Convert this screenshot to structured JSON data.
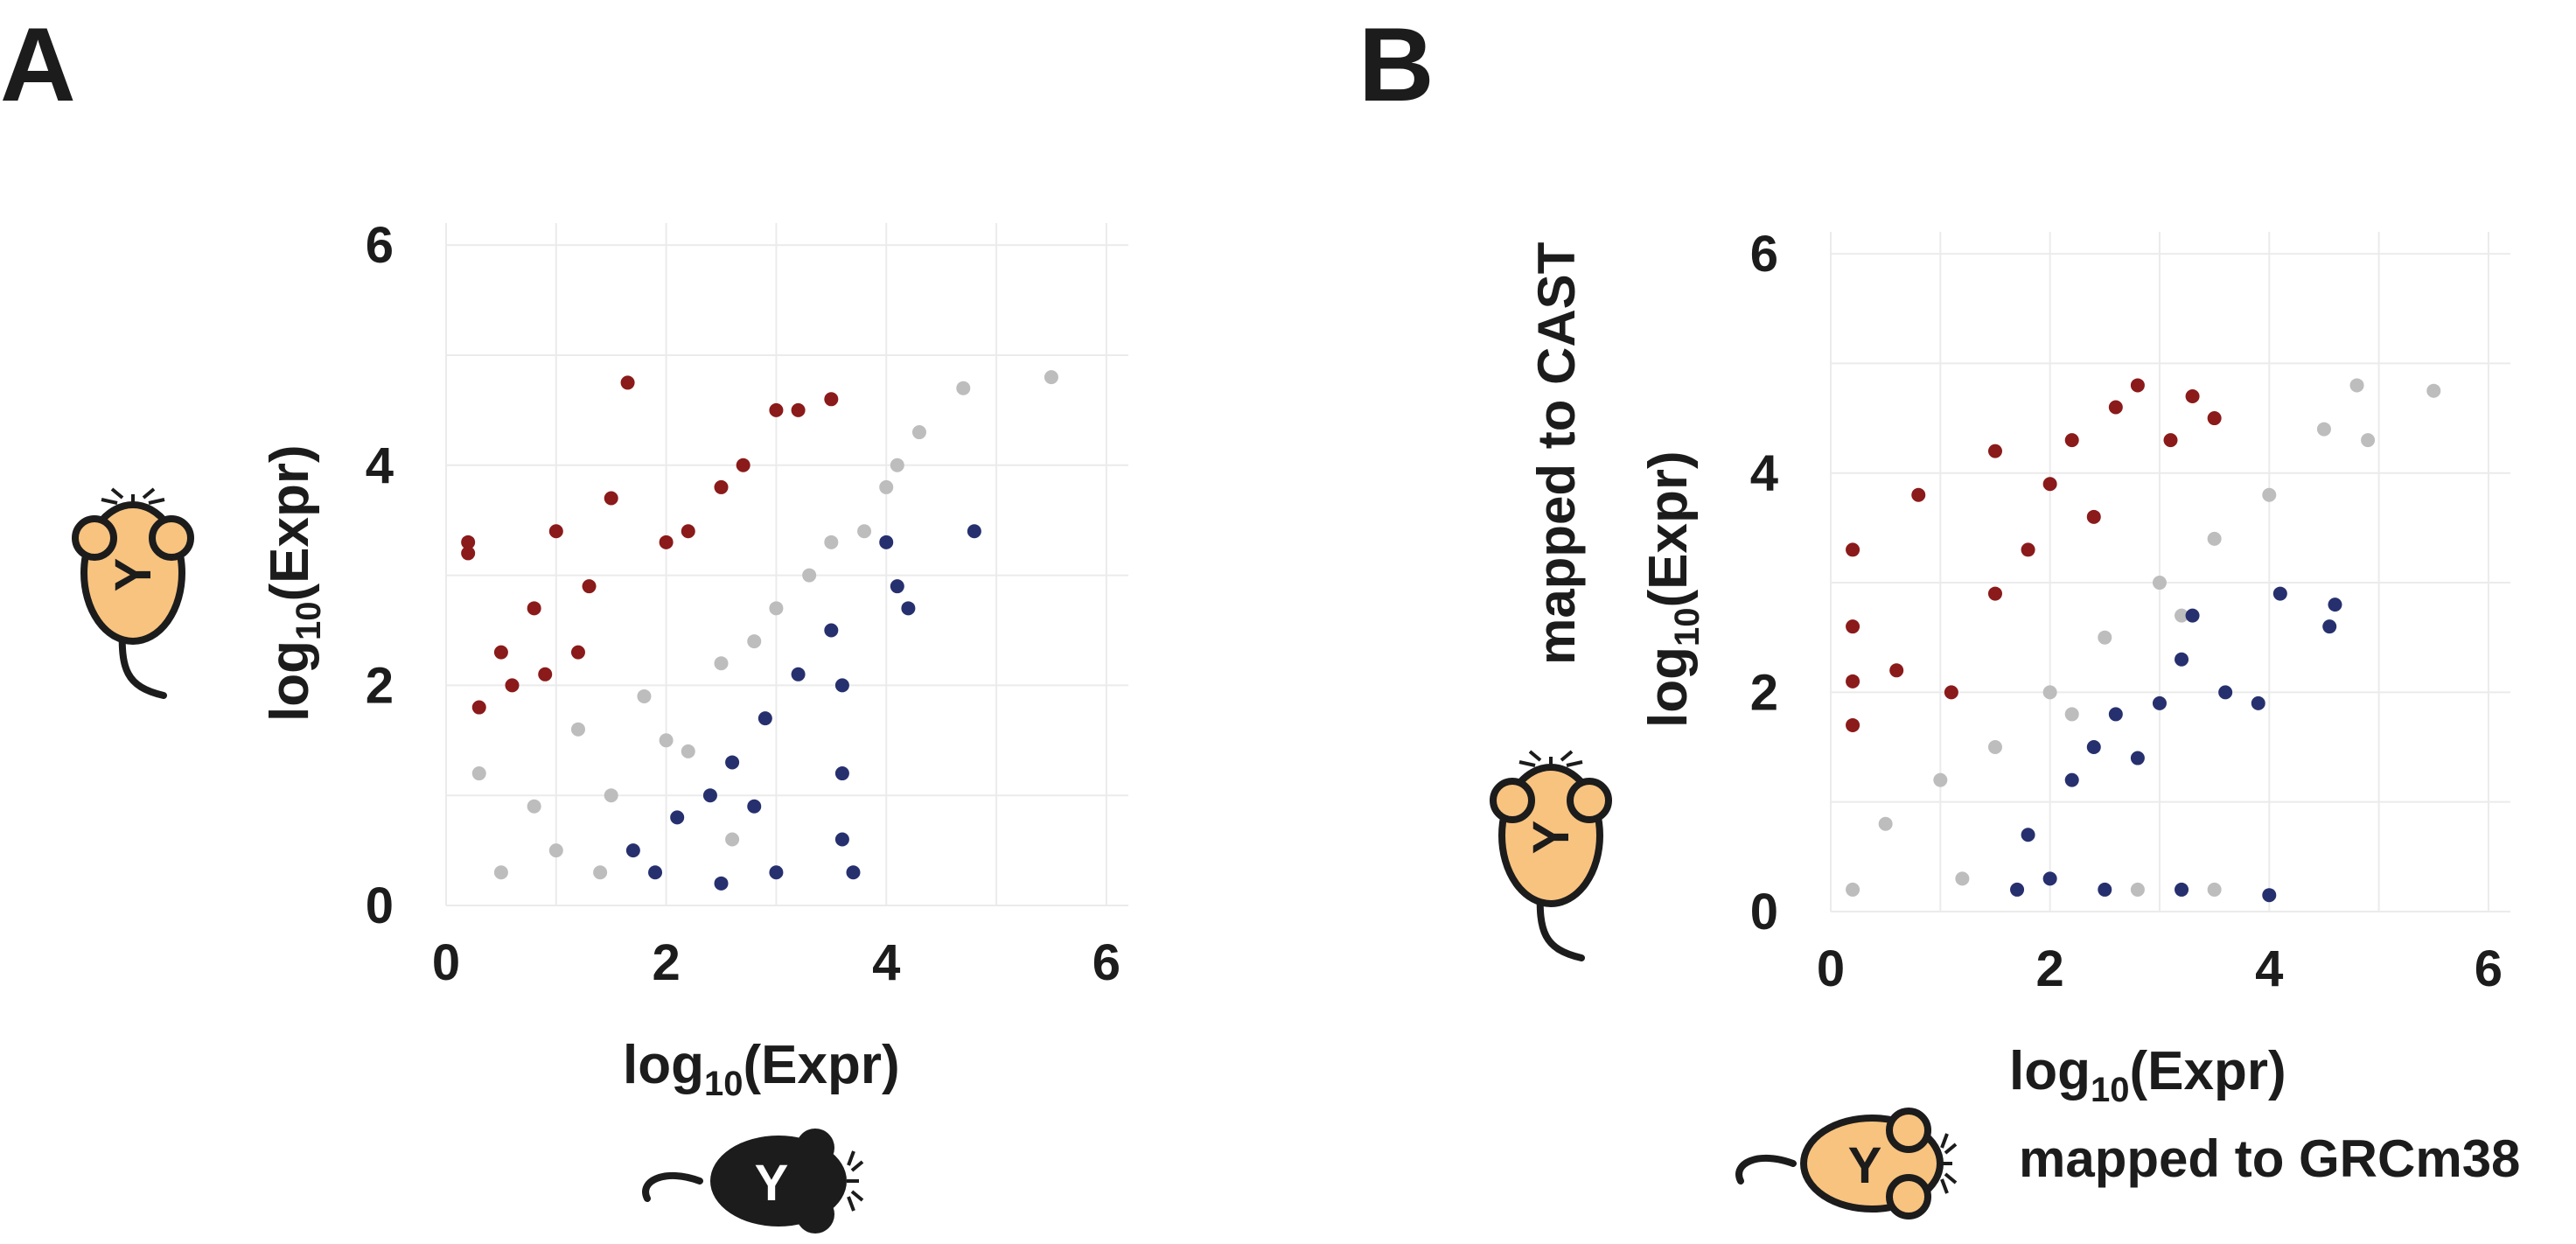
{
  "colors": {
    "non_significant": "#bdbdbd",
    "up": "#8b1a1a",
    "down": "#27306e",
    "mouse_fill": "#f8c37f",
    "mouse_outline": "#1c1c1c",
    "grid": "#ebebeb"
  },
  "panel_letters": [
    "A",
    "B"
  ],
  "axis_title_main": "log",
  "axis_title_sub": "10",
  "axis_title_rest": "(Expr)",
  "panel_b": {
    "y_mapping_label": "mapped to CAST",
    "x_mapping_label": "mapped to GRCm38"
  },
  "icons": [
    "mouse-y-orange-icon",
    "mouse-y-black-icon"
  ],
  "chart_data": [
    {
      "type": "scatter",
      "panel": "A",
      "xlim": [
        0,
        6.2
      ],
      "ylim": [
        0,
        6.2
      ],
      "x_ticks": [
        0,
        2,
        4,
        6
      ],
      "y_ticks": [
        0,
        2,
        4,
        6
      ],
      "grid": true,
      "legend": "none",
      "series": [
        {
          "color": "non_significant",
          "points": [
            [
              0.5,
              0.3
            ],
            [
              1,
              0.5
            ],
            [
              1.5,
              1
            ],
            [
              2,
              1.5
            ],
            [
              2.5,
              2.2
            ],
            [
              3,
              2.7
            ],
            [
              3.5,
              3.3
            ],
            [
              4,
              3.8
            ],
            [
              4.3,
              4.3
            ],
            [
              4.7,
              4.7
            ],
            [
              5.5,
              4.8
            ],
            [
              0.3,
              1.2
            ],
            [
              0.8,
              0.9
            ],
            [
              1.2,
              1.6
            ],
            [
              1.8,
              1.9
            ],
            [
              2.2,
              1.4
            ],
            [
              2.8,
              2.4
            ],
            [
              3.3,
              3.0
            ],
            [
              3.8,
              3.4
            ],
            [
              4.1,
              4.0
            ],
            [
              1.4,
              0.3
            ],
            [
              2.6,
              0.6
            ]
          ]
        },
        {
          "color": "up",
          "points": [
            [
              0.2,
              3.3
            ],
            [
              0.2,
              3.2
            ],
            [
              0.5,
              2.3
            ],
            [
              0.8,
              2.7
            ],
            [
              1,
              3.4
            ],
            [
              1.3,
              2.9
            ],
            [
              1.5,
              3.7
            ],
            [
              1.65,
              4.75
            ],
            [
              2,
              3.3
            ],
            [
              2.2,
              3.4
            ],
            [
              2.5,
              3.8
            ],
            [
              2.7,
              4.0
            ],
            [
              3,
              4.5
            ],
            [
              3.2,
              4.5
            ],
            [
              3.5,
              4.6
            ],
            [
              0.3,
              1.8
            ],
            [
              0.6,
              2.0
            ],
            [
              0.9,
              2.1
            ],
            [
              1.2,
              2.3
            ]
          ]
        },
        {
          "color": "down",
          "points": [
            [
              1.7,
              0.5
            ],
            [
              1.9,
              0.3
            ],
            [
              2.1,
              0.8
            ],
            [
              2.4,
              1.0
            ],
            [
              2.6,
              1.3
            ],
            [
              2.9,
              1.7
            ],
            [
              3.2,
              2.1
            ],
            [
              3.5,
              2.5
            ],
            [
              3.6,
              2.0
            ],
            [
              3.7,
              0.3
            ],
            [
              4.0,
              3.3
            ],
            [
              4.1,
              2.9
            ],
            [
              4.2,
              2.7
            ],
            [
              4.8,
              3.4
            ],
            [
              2.5,
              0.2
            ],
            [
              3.0,
              0.3
            ],
            [
              3.6,
              0.6
            ],
            [
              3.6,
              1.2
            ],
            [
              2.8,
              0.9
            ]
          ]
        }
      ]
    },
    {
      "type": "scatter",
      "panel": "B",
      "xlim": [
        0,
        6.2
      ],
      "ylim": [
        0,
        6.2
      ],
      "x_ticks": [
        0,
        2,
        4,
        6
      ],
      "y_ticks": [
        0,
        2,
        4,
        6
      ],
      "grid": true,
      "legend": "none",
      "series": [
        {
          "color": "non_significant",
          "points": [
            [
              0.2,
              0.2
            ],
            [
              0.5,
              0.8
            ],
            [
              1,
              1.2
            ],
            [
              1.5,
              1.5
            ],
            [
              2,
              2
            ],
            [
              2.5,
              2.5
            ],
            [
              3,
              3
            ],
            [
              3.5,
              3.4
            ],
            [
              4,
              3.8
            ],
            [
              4.5,
              4.4
            ],
            [
              4.8,
              4.8
            ],
            [
              5.5,
              4.75
            ],
            [
              4.9,
              4.3
            ],
            [
              1.2,
              0.3
            ],
            [
              3.5,
              0.2
            ],
            [
              2.8,
              0.2
            ],
            [
              2.2,
              1.8
            ],
            [
              3.2,
              2.7
            ]
          ]
        },
        {
          "color": "up",
          "points": [
            [
              0.2,
              3.3
            ],
            [
              0.2,
              2.6
            ],
            [
              0.2,
              2.1
            ],
            [
              0.2,
              1.7
            ],
            [
              0.6,
              2.2
            ],
            [
              0.8,
              3.8
            ],
            [
              1.1,
              2.0
            ],
            [
              1.5,
              2.9
            ],
            [
              1.5,
              4.2
            ],
            [
              1.8,
              3.3
            ],
            [
              2.0,
              3.9
            ],
            [
              2.2,
              4.3
            ],
            [
              2.4,
              3.6
            ],
            [
              2.6,
              4.6
            ],
            [
              2.8,
              4.8
            ],
            [
              3.1,
              4.3
            ],
            [
              3.3,
              4.7
            ],
            [
              3.5,
              4.5
            ]
          ]
        },
        {
          "color": "down",
          "points": [
            [
              1.7,
              0.2
            ],
            [
              1.8,
              0.7
            ],
            [
              2.0,
              0.3
            ],
            [
              2.2,
              1.2
            ],
            [
              2.4,
              1.5
            ],
            [
              2.6,
              1.8
            ],
            [
              2.8,
              1.4
            ],
            [
              3.0,
              1.9
            ],
            [
              3.2,
              2.3
            ],
            [
              3.3,
              2.7
            ],
            [
              3.6,
              2.0
            ],
            [
              3.9,
              1.9
            ],
            [
              4.0,
              0.15
            ],
            [
              4.1,
              2.9
            ],
            [
              4.6,
              2.8
            ],
            [
              4.55,
              2.6
            ],
            [
              2.5,
              0.2
            ],
            [
              3.2,
              0.2
            ]
          ]
        }
      ]
    }
  ]
}
